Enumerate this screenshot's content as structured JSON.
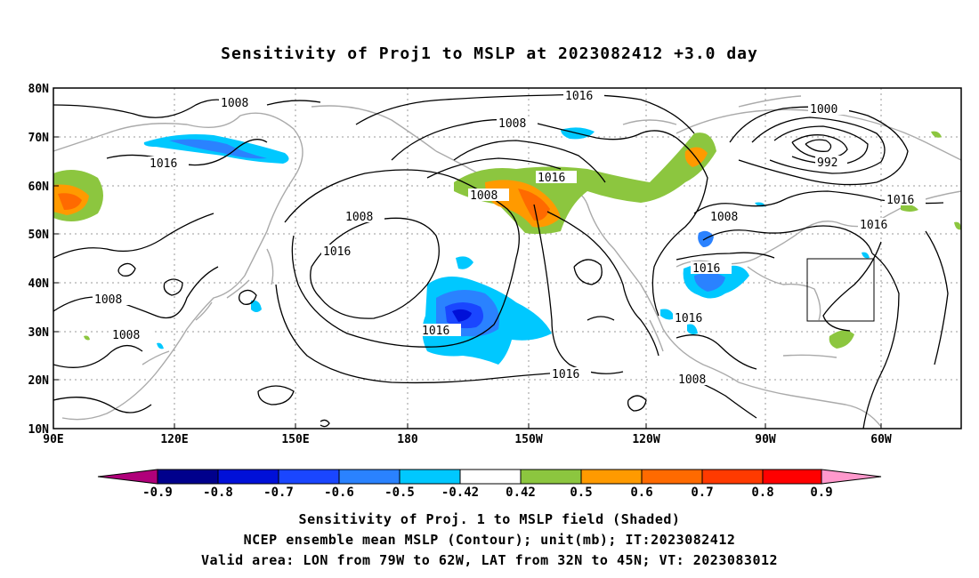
{
  "title": "Sensitivity of Proj1 to MSLP at 2023082412 +3.0 day",
  "axes": {
    "lat_labels": [
      "80N",
      "70N",
      "60N",
      "50N",
      "40N",
      "30N",
      "20N",
      "10N"
    ],
    "lon_labels": [
      "90E",
      "120E",
      "150E",
      "180",
      "150W",
      "120W",
      "90W",
      "60W"
    ]
  },
  "contour_labels": {
    "c1016": "1016",
    "c1008": "1008",
    "c1000": "1000",
    "c992": "992"
  },
  "colorbar": {
    "labels": [
      "-0.9",
      "-0.8",
      "-0.7",
      "-0.6",
      "-0.5",
      "-0.42",
      "0.42",
      "0.5",
      "0.6",
      "0.7",
      "0.8",
      "0.9"
    ],
    "colors": [
      "#b0007a",
      "#00008c",
      "#0010d8",
      "#1a46ff",
      "#2a82ff",
      "#00c8ff",
      "#ffffff",
      "#8cc63f",
      "#ff9a00",
      "#ff6a00",
      "#ff3a00",
      "#ff0000",
      "#ff99cc"
    ]
  },
  "valid_box": {
    "lon_range": "79W-62W",
    "lat_range": "32N-45N"
  },
  "captions": {
    "line1": "Sensitivity of Proj. 1 to MSLP field (Shaded)",
    "line2": "NCEP ensemble mean MSLP (Contour); unit(mb); IT:2023082412",
    "line3": "Valid area: LON from 79W to 62W, LAT from 32N to 45N; VT: 2023083012"
  }
}
